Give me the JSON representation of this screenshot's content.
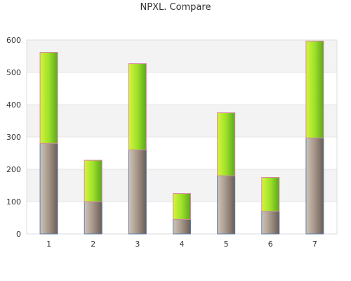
{
  "chart_data": {
    "type": "bar",
    "stacked": true,
    "title": "NPXL. Compare",
    "xlabel": "",
    "ylabel": "",
    "categories": [
      "1",
      "2",
      "3",
      "4",
      "5",
      "6",
      "7"
    ],
    "ylim": [
      0,
      600
    ],
    "yticks": [
      0,
      100,
      200,
      300,
      400,
      500,
      600
    ],
    "grid": true,
    "legend": "none",
    "series": [
      {
        "values": [
          280,
          100,
          260,
          45,
          180,
          70,
          297
        ],
        "color": "#9e8f83"
      },
      {
        "values": [
          282,
          128,
          267,
          80,
          195,
          105,
          300
        ],
        "color": "#9ee02a"
      }
    ],
    "colors": {
      "band": "#f3f3f3",
      "axis": "#dddddd",
      "grid": "#e6e6e6"
    }
  }
}
